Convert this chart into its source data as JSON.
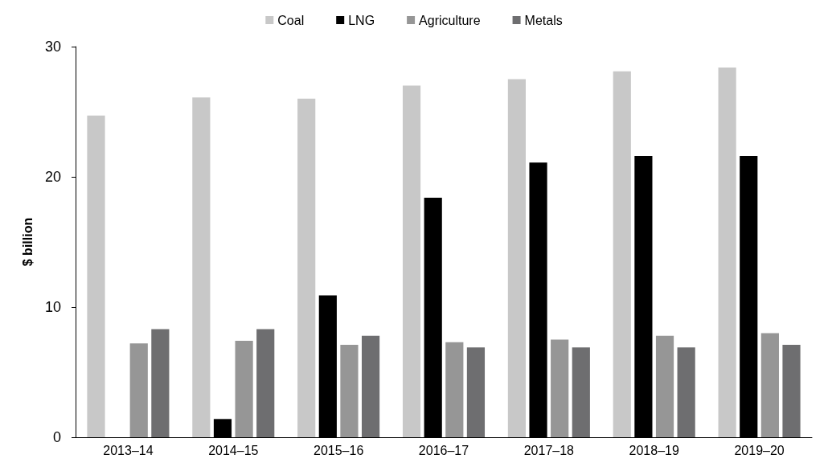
{
  "chart_data": {
    "type": "bar",
    "ylabel": "$ billion",
    "categories": [
      "2013–14",
      "2014–15",
      "2015–16",
      "2016–17",
      "2017–18",
      "2018–19",
      "2019–20"
    ],
    "series": [
      {
        "name": "Coal",
        "color": "#c8c8c8",
        "values": [
          24.7,
          26.1,
          26.0,
          27.0,
          27.5,
          28.1,
          28.4
        ]
      },
      {
        "name": "LNG",
        "color": "#000000",
        "values": [
          null,
          1.4,
          10.9,
          18.4,
          21.1,
          21.6,
          21.6
        ]
      },
      {
        "name": "Agriculture",
        "color": "#969696",
        "values": [
          7.2,
          7.4,
          7.1,
          7.3,
          7.5,
          7.8,
          8.0
        ]
      },
      {
        "name": "Metals",
        "color": "#6e6e70",
        "values": [
          8.3,
          8.3,
          7.8,
          6.9,
          6.9,
          6.9,
          7.1
        ]
      }
    ],
    "ylim": [
      0,
      30
    ],
    "yticks": [
      0,
      10,
      20,
      30
    ],
    "grid": false,
    "legend": "top"
  }
}
